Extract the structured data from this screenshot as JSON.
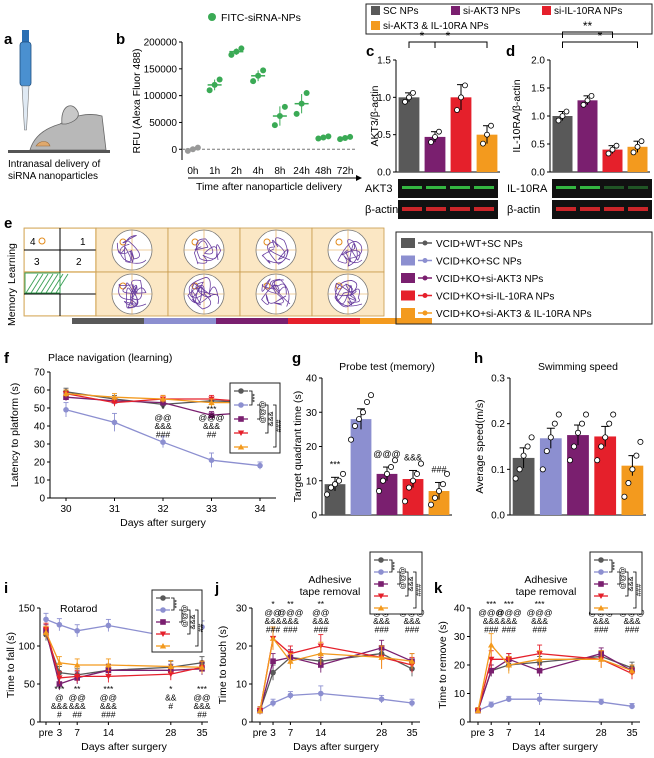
{
  "figure": {
    "panel_letters": [
      "a",
      "b",
      "c",
      "d",
      "e",
      "f",
      "g",
      "h",
      "i",
      "j",
      "k"
    ]
  },
  "panel_a": {
    "caption_line1": "Intranasal delivery of",
    "caption_line2": "siRNA nanoparticles"
  },
  "legend_top": {
    "items": [
      {
        "label": "SC NPs",
        "color": "#595959"
      },
      {
        "label": "si-AKT3 NPs",
        "color": "#7a1f6f"
      },
      {
        "label": "si-IL-10RA NPs",
        "color": "#e5202b"
      },
      {
        "label": "si-AKT3 & IL-10RA NPs",
        "color": "#f39a1e"
      }
    ]
  },
  "legend_groups": {
    "items": [
      {
        "label": "VCID+WT+SC NPs",
        "color": "#595959"
      },
      {
        "label": "VCID+KO+SC NPs",
        "color": "#8c8fd0"
      },
      {
        "label": "VCID+KO+si-AKT3 NPs",
        "color": "#7a1f6f"
      },
      {
        "label": "VCID+KO+si-IL-10RA NPs",
        "color": "#e5202b"
      },
      {
        "label": "VCID+KO+si-AKT3 & IL-10RA NPs",
        "color": "#f39a1e"
      }
    ]
  },
  "panel_e": {
    "row_labels": [
      "Learning",
      "Memory"
    ],
    "quadrant_labels": [
      "4",
      "1",
      "3",
      "2"
    ]
  },
  "blots": {
    "c_labels": [
      "AKT3",
      "β-actin"
    ],
    "d_labels": [
      "IL-10RA",
      "β-actin"
    ]
  },
  "chart_data": [
    {
      "panel": "b",
      "type": "scatter",
      "legend": "FITC-siRNA-NPs",
      "color": "#3aaa55",
      "categories": [
        "0h",
        "1h",
        "2h",
        "4h",
        "8h",
        "24h",
        "48h",
        "72h"
      ],
      "means": [
        0,
        120000,
        182000,
        137000,
        62000,
        85000,
        22000,
        21000
      ],
      "errors": [
        3000,
        10000,
        6000,
        10000,
        18000,
        18000,
        2000,
        2000
      ],
      "points": [
        [
          -3000,
          0,
          3000
        ],
        [
          110000,
          120000,
          130000
        ],
        [
          176000,
          182000,
          188000
        ],
        [
          127000,
          137000,
          147000
        ],
        [
          45000,
          62000,
          79000
        ],
        [
          66000,
          85000,
          105000
        ],
        [
          20000,
          22000,
          24000
        ],
        [
          19000,
          21000,
          23000
        ]
      ],
      "ylabel": "RFU (Alexa Fluor 488)",
      "xlabel": "Time after nanoparticle delivery",
      "ylim": [
        -20000,
        200000
      ],
      "yticks": [
        0,
        50000,
        100000,
        150000,
        200000
      ],
      "ytick_labels": [
        "0",
        "50000",
        "100000",
        "150000",
        "200000"
      ]
    },
    {
      "panel": "c",
      "type": "bar",
      "ylabel": "AKT3/β-actin",
      "values": [
        1.0,
        0.47,
        1.0,
        0.5
      ],
      "errors": [
        0.06,
        0.07,
        0.17,
        0.12
      ],
      "points": [
        [
          0.94,
          1.0,
          1.06
        ],
        [
          0.4,
          0.47,
          0.54
        ],
        [
          0.83,
          1.0,
          1.16
        ],
        [
          0.38,
          0.5,
          0.62
        ]
      ],
      "colors": [
        "#595959",
        "#7a1f6f",
        "#e5202b",
        "#f39a1e"
      ],
      "ylim": [
        0,
        1.5
      ],
      "yticks": [
        0.0,
        0.5,
        1.0,
        1.5
      ],
      "ytick_labels": [
        "0.0",
        "0.5",
        "1.0",
        "1.5"
      ],
      "significance": [
        {
          "from": 0,
          "to": 1,
          "label": "*"
        },
        {
          "from": 0,
          "to": 3,
          "label": "*"
        }
      ]
    },
    {
      "panel": "d",
      "type": "bar",
      "ylabel": "IL-10RA/β-actin",
      "values": [
        1.0,
        1.28,
        0.4,
        0.45
      ],
      "errors": [
        0.08,
        0.08,
        0.07,
        0.1
      ],
      "points": [
        [
          0.92,
          1.0,
          1.08
        ],
        [
          1.2,
          1.28,
          1.36
        ],
        [
          0.33,
          0.4,
          0.47
        ],
        [
          0.35,
          0.45,
          0.55
        ]
      ],
      "colors": [
        "#595959",
        "#7a1f6f",
        "#e5202b",
        "#f39a1e"
      ],
      "ylim": [
        0,
        2.0
      ],
      "yticks": [
        0.0,
        0.5,
        1.0,
        1.5,
        2.0
      ],
      "ytick_labels": [
        "0.0",
        "0.5",
        "1.0",
        "1.5",
        "2.0"
      ],
      "significance": [
        {
          "from": 0,
          "to": 2,
          "label": "**"
        },
        {
          "from": 0,
          "to": 3,
          "label": "*"
        }
      ]
    },
    {
      "panel": "f",
      "type": "line",
      "title": "Place navigation (learning)",
      "ylabel": "Latency to platform (s)",
      "xlabel": "Days after surgery",
      "x": [
        30,
        31,
        32,
        33,
        34
      ],
      "ylim": [
        0,
        70
      ],
      "yticks": [
        0,
        10,
        20,
        30,
        40,
        50,
        60,
        70
      ],
      "series": [
        {
          "color": "#595959",
          "values": [
            59,
            55,
            52,
            54,
            53
          ],
          "errors": [
            2,
            2,
            2,
            2,
            2
          ]
        },
        {
          "color": "#8c8fd0",
          "values": [
            49,
            42,
            31,
            21,
            18
          ],
          "errors": [
            4,
            5,
            3,
            4,
            2
          ]
        },
        {
          "color": "#7a1f6f",
          "values": [
            56,
            54,
            53,
            46,
            48
          ],
          "errors": [
            2,
            2,
            2,
            2,
            2
          ]
        },
        {
          "color": "#e5202b",
          "values": [
            58,
            53,
            55,
            55,
            53
          ],
          "errors": [
            2,
            2,
            2,
            2,
            2
          ]
        },
        {
          "color": "#f39a1e",
          "values": [
            58,
            56,
            55,
            53,
            53
          ],
          "errors": [
            2,
            2,
            2,
            2,
            2
          ]
        }
      ],
      "annotations": [
        {
          "x": 32,
          "lines": [
            "*",
            "@@",
            "&&&",
            "###"
          ]
        },
        {
          "x": 33,
          "lines": [
            "***",
            "@@@",
            "&&&",
            "##"
          ]
        },
        {
          "x": 34,
          "lines": [
            "***",
            "@@@",
            "&&&",
            "###"
          ]
        }
      ],
      "bracket_labels": [
        "***",
        "@@@",
        "&&&",
        "###"
      ]
    },
    {
      "panel": "g",
      "type": "bar",
      "title": "Probe test (memory)",
      "ylabel": "Target quadrant time (s)",
      "values": [
        9,
        28,
        12,
        10.5,
        7
      ],
      "errors": [
        2,
        3,
        2,
        2.5,
        2.5
      ],
      "colors": [
        "#595959",
        "#8c8fd0",
        "#7a1f6f",
        "#e5202b",
        "#f39a1e"
      ],
      "ylim": [
        0,
        40
      ],
      "yticks": [
        0,
        10,
        20,
        30,
        40
      ],
      "points": [
        [
          6,
          8,
          9,
          10,
          12
        ],
        [
          22,
          26,
          28,
          30,
          33,
          35
        ],
        [
          7,
          10,
          12,
          14,
          16
        ],
        [
          4,
          8,
          10,
          12,
          15
        ],
        [
          3,
          5,
          7,
          9,
          12
        ]
      ],
      "annotations": [
        "***",
        "",
        "@@@",
        "&&&",
        "###"
      ]
    },
    {
      "panel": "h",
      "type": "bar",
      "title": "Swimming speed",
      "ylabel": "Average speed(m/s)",
      "values": [
        0.125,
        0.168,
        0.175,
        0.172,
        0.108
      ],
      "errors": [
        0.022,
        0.022,
        0.022,
        0.022,
        0.022
      ],
      "colors": [
        "#595959",
        "#8c8fd0",
        "#7a1f6f",
        "#e5202b",
        "#f39a1e"
      ],
      "ylim": [
        0,
        0.3
      ],
      "yticks": [
        0.0,
        0.1,
        0.2,
        0.3
      ],
      "ytick_labels": [
        "0.0",
        "0.1",
        "0.2",
        "0.3"
      ],
      "points": [
        [
          0.08,
          0.1,
          0.13,
          0.15,
          0.17
        ],
        [
          0.1,
          0.14,
          0.17,
          0.2,
          0.22
        ],
        [
          0.12,
          0.15,
          0.18,
          0.2,
          0.22
        ],
        [
          0.12,
          0.15,
          0.17,
          0.2,
          0.22
        ],
        [
          0.04,
          0.07,
          0.1,
          0.13,
          0.16
        ]
      ]
    },
    {
      "panel": "i",
      "type": "line",
      "title": "Rotarod",
      "ylabel": "Time to fall (s)",
      "xlabel": "Days after surgery",
      "x": [
        0,
        3,
        7,
        14,
        28,
        35
      ],
      "x_labels": [
        "pre",
        "3",
        "7",
        "14",
        "28",
        "35"
      ],
      "ylim": [
        0,
        150
      ],
      "yticks": [
        0,
        50,
        100,
        150
      ],
      "series": [
        {
          "color": "#595959",
          "values": [
            115,
            65,
            62,
            68,
            72,
            78
          ],
          "errors": [
            8,
            8,
            8,
            8,
            8,
            8
          ]
        },
        {
          "color": "#8c8fd0",
          "values": [
            135,
            128,
            120,
            127,
            112,
            125
          ],
          "errors": [
            8,
            8,
            8,
            8,
            8,
            8
          ]
        },
        {
          "color": "#7a1f6f",
          "values": [
            120,
            50,
            58,
            68,
            68,
            70
          ],
          "errors": [
            8,
            8,
            8,
            8,
            8,
            8
          ]
        },
        {
          "color": "#e5202b",
          "values": [
            122,
            58,
            60,
            60,
            63,
            72
          ],
          "errors": [
            8,
            8,
            8,
            8,
            8,
            8
          ]
        },
        {
          "color": "#f39a1e",
          "values": [
            118,
            78,
            75,
            75,
            73,
            72
          ],
          "errors": [
            8,
            8,
            8,
            8,
            8,
            8
          ]
        }
      ],
      "annotations": [
        {
          "x": 3,
          "lines": [
            "***",
            "@",
            "&&&",
            "#"
          ]
        },
        {
          "x": 7,
          "lines": [
            "**",
            "@@",
            "&&&",
            "##"
          ]
        },
        {
          "x": 14,
          "lines": [
            "***",
            "@@",
            "&&&",
            "###"
          ]
        },
        {
          "x": 28,
          "lines": [
            "*",
            "&&",
            "#"
          ]
        },
        {
          "x": 35,
          "lines": [
            "***",
            "@@",
            "&&&",
            "##"
          ]
        }
      ],
      "bracket_labels": [
        "***",
        "@@@",
        "&&&",
        "##"
      ]
    },
    {
      "panel": "j",
      "type": "line",
      "title": "Adhesive\ntape removal",
      "ylabel": "Time to touch (s)",
      "xlabel": "Days after surgery",
      "x": [
        0,
        3,
        7,
        14,
        28,
        35
      ],
      "x_labels": [
        "pre",
        "3",
        "7",
        "14",
        "28",
        "35"
      ],
      "ylim": [
        0,
        30
      ],
      "yticks": [
        0,
        10,
        20,
        30
      ],
      "series": [
        {
          "color": "#595959",
          "values": [
            3,
            13,
            17,
            16,
            18,
            14
          ],
          "errors": [
            1,
            2,
            2,
            2,
            2,
            2
          ]
        },
        {
          "color": "#8c8fd0",
          "values": [
            3,
            5,
            7,
            7.5,
            6,
            5
          ],
          "errors": [
            1,
            1,
            1,
            2,
            1,
            1
          ]
        },
        {
          "color": "#7a1f6f",
          "values": [
            3,
            16,
            17,
            15,
            19.5,
            16
          ],
          "errors": [
            1,
            2,
            2,
            2,
            2,
            2
          ]
        },
        {
          "color": "#e5202b",
          "values": [
            3,
            22,
            18,
            20,
            17,
            15
          ],
          "errors": [
            1,
            3,
            2,
            3,
            3,
            2
          ]
        },
        {
          "color": "#f39a1e",
          "values": [
            3,
            22,
            16,
            18,
            17,
            16
          ],
          "errors": [
            1,
            3,
            2,
            3,
            3,
            2
          ]
        }
      ],
      "annotations": [
        {
          "x": 3,
          "lines": [
            "*",
            "@@",
            "&&&",
            "###"
          ]
        },
        {
          "x": 7,
          "lines": [
            "**",
            "@@@",
            "&&&",
            "###"
          ]
        },
        {
          "x": 14,
          "lines": [
            "**",
            "@@",
            "&&&",
            "###"
          ]
        },
        {
          "x": 28,
          "lines": [
            "***",
            "@@",
            "&&&",
            "###"
          ]
        },
        {
          "x": 35,
          "lines": [
            "***",
            "@@@",
            "&&&",
            "###"
          ]
        }
      ],
      "bracket_labels": [
        "***",
        "@@@",
        "&&&",
        "###"
      ]
    },
    {
      "panel": "k",
      "type": "line",
      "title": "Adhesive\ntape removal",
      "ylabel": "Time to remove (s)",
      "xlabel": "Days after surgery",
      "x": [
        0,
        3,
        7,
        14,
        28,
        35
      ],
      "x_labels": [
        "pre",
        "3",
        "7",
        "14",
        "28",
        "35"
      ],
      "ylim": [
        0,
        40
      ],
      "yticks": [
        0,
        10,
        20,
        30,
        40
      ],
      "series": [
        {
          "color": "#595959",
          "values": [
            4,
            18,
            20,
            21,
            23,
            19
          ],
          "errors": [
            1,
            2,
            2,
            2,
            2,
            2
          ]
        },
        {
          "color": "#8c8fd0",
          "values": [
            4,
            6,
            8,
            8,
            7,
            5.5
          ],
          "errors": [
            1,
            1,
            1,
            2,
            1,
            1
          ]
        },
        {
          "color": "#7a1f6f",
          "values": [
            4,
            18,
            22,
            18,
            24,
            18
          ],
          "errors": [
            1,
            2,
            2,
            2,
            2,
            2
          ]
        },
        {
          "color": "#e5202b",
          "values": [
            4,
            22,
            22,
            24,
            22,
            17
          ],
          "errors": [
            1,
            3,
            2,
            3,
            3,
            2
          ]
        },
        {
          "color": "#f39a1e",
          "values": [
            4,
            27,
            20,
            22,
            22,
            18
          ],
          "errors": [
            1,
            4,
            3,
            3,
            3,
            2
          ]
        }
      ],
      "annotations": [
        {
          "x": 3,
          "lines": [
            "***",
            "@@@",
            "&&&",
            "###"
          ]
        },
        {
          "x": 7,
          "lines": [
            "***",
            "@@@",
            "&&&",
            "###"
          ]
        },
        {
          "x": 14,
          "lines": [
            "***",
            "@@@",
            "&&&",
            "###"
          ]
        },
        {
          "x": 28,
          "lines": [
            "***",
            "@@@",
            "&&&",
            "###"
          ]
        },
        {
          "x": 35,
          "lines": [
            "***",
            "@@@",
            "&&&",
            "###"
          ]
        }
      ],
      "bracket_labels": [
        "***",
        "@@@",
        "&&&",
        "###"
      ]
    }
  ]
}
